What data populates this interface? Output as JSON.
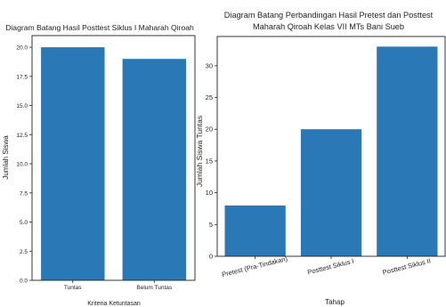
{
  "chart_data": [
    {
      "type": "bar",
      "title": "Diagram Batang Hasil Posttest Siklus I Maharah Qiroah",
      "xlabel": "Kriteria Ketuntasan",
      "ylabel": "Jumlah Siswa",
      "categories": [
        "Tuntas",
        "Belum Tuntas"
      ],
      "values": [
        20,
        19
      ],
      "ylim": [
        0,
        21
      ],
      "yticks": [
        0.0,
        2.5,
        5.0,
        7.5,
        10.0,
        12.5,
        15.0,
        17.5,
        20.0
      ],
      "ytick_labels": [
        "0.0",
        "2.5",
        "5.0",
        "7.5",
        "10.0",
        "12.5",
        "15.0",
        "17.5",
        "20.0"
      ],
      "grid": false,
      "bar_color": "#2a78b5"
    },
    {
      "type": "bar",
      "title": "Diagram Batang Perbandingan Hasil Pretest dan Posttest Maharah Qiroah Kelas VII MTs Bani Sueb",
      "title_lines": [
        "Diagram Batang Perbandingan Hasil Pretest dan Posttest",
        "Maharah Qiroah Kelas VII MTs Bani Sueb"
      ],
      "xlabel": "Tahap",
      "ylabel": "Jumlah Siswa Tuntas",
      "categories": [
        "Pretest (Pra-Tindakan)",
        "Posttest Siklus I",
        "Posttest Siklus II"
      ],
      "values": [
        8,
        20,
        33
      ],
      "ylim": [
        0,
        34.6
      ],
      "yticks": [
        0,
        5,
        10,
        15,
        20,
        25,
        30
      ],
      "ytick_labels": [
        "0",
        "5",
        "10",
        "15",
        "20",
        "25",
        "30"
      ],
      "grid": false,
      "bar_color": "#2a78b5"
    }
  ]
}
